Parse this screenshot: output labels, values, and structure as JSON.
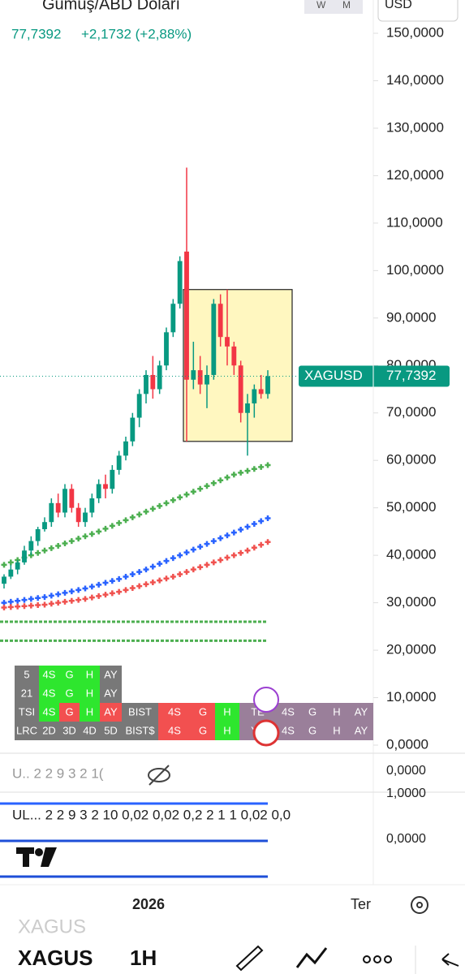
{
  "header": {
    "title": "Gumuş/ABD Doları",
    "price": "77,7392",
    "change": "+2,1732 (+2,88%)",
    "currency": "USD",
    "intervals": [
      "W",
      "M"
    ]
  },
  "chart_data": {
    "type": "candlestick",
    "ylim": [
      0,
      150
    ],
    "yticks": [
      {
        "value": 150,
        "label": "150,0000"
      },
      {
        "value": 140,
        "label": "140,0000"
      },
      {
        "value": 130,
        "label": "130,0000"
      },
      {
        "value": 120,
        "label": "120,0000"
      },
      {
        "value": 110,
        "label": "110,0000"
      },
      {
        "value": 100,
        "label": "100,0000"
      },
      {
        "value": 90,
        "label": "90,0000"
      },
      {
        "value": 80,
        "label": "80,0000"
      },
      {
        "value": 70,
        "label": "70,0000"
      },
      {
        "value": 60,
        "label": "60,0000"
      },
      {
        "value": 50,
        "label": "50,0000"
      },
      {
        "value": 40,
        "label": "40,0000"
      },
      {
        "value": 30,
        "label": "30,0000"
      },
      {
        "value": 20,
        "label": "20,0000"
      },
      {
        "value": 10,
        "label": "10,0000"
      },
      {
        "value": 0,
        "label": "0,0000"
      }
    ],
    "up_color": "#089981",
    "down_color": "#f23645",
    "candles": [
      [
        34,
        36,
        33,
        35.5
      ],
      [
        35.5,
        38,
        35,
        37
      ],
      [
        37,
        39,
        36,
        38.5
      ],
      [
        38.5,
        42,
        38,
        41
      ],
      [
        41,
        44,
        40,
        43
      ],
      [
        43,
        46,
        42,
        45.5
      ],
      [
        45.5,
        48,
        45,
        47
      ],
      [
        47,
        52,
        46,
        51
      ],
      [
        51,
        53,
        48,
        49
      ],
      [
        49,
        55,
        48,
        54
      ],
      [
        54,
        55,
        49,
        50
      ],
      [
        50,
        51,
        46,
        47
      ],
      [
        47,
        50,
        46,
        49
      ],
      [
        49,
        53,
        48,
        52
      ],
      [
        52,
        56,
        51,
        55
      ],
      [
        55,
        57,
        52,
        54
      ],
      [
        54,
        59,
        53,
        58
      ],
      [
        58,
        62,
        57,
        61
      ],
      [
        61,
        65,
        60,
        64
      ],
      [
        64,
        70,
        63,
        69
      ],
      [
        69,
        75,
        67,
        74
      ],
      [
        74,
        79,
        72,
        78
      ],
      [
        78,
        82,
        73,
        75
      ],
      [
        75,
        81,
        74,
        80
      ],
      [
        80,
        88,
        79,
        87
      ],
      [
        87,
        94,
        86,
        93
      ],
      [
        93,
        103,
        92,
        102
      ],
      [
        104,
        121.7,
        64,
        77
      ],
      [
        77,
        85,
        75,
        79
      ],
      [
        79,
        82,
        74,
        76
      ],
      [
        76,
        80,
        71,
        78
      ],
      [
        78,
        94,
        77,
        93
      ],
      [
        93,
        95,
        84,
        86
      ],
      [
        86,
        96,
        80,
        84
      ],
      [
        84,
        85,
        78,
        80
      ],
      [
        80,
        81,
        68,
        70
      ],
      [
        70,
        74,
        61,
        72
      ],
      [
        72,
        76,
        69,
        75
      ],
      [
        75,
        78,
        73,
        74
      ],
      [
        74,
        79,
        73,
        77.7392
      ]
    ],
    "box": {
      "high": 96,
      "low": 64,
      "color": "#fff7c0"
    },
    "series": [
      {
        "color": "#2962ff",
        "values": [
          30,
          30.2,
          30.4,
          30.6,
          30.8,
          31,
          31.2,
          31.5,
          31.8,
          32.1,
          32.4,
          32.7,
          33,
          33.4,
          33.8,
          34.2,
          34.6,
          35,
          35.5,
          36,
          36.5,
          37,
          37.6,
          38.2,
          38.8,
          39.4,
          40,
          40.6,
          41.2,
          41.8,
          42.4,
          43,
          43.6,
          44.2,
          44.8,
          45.4,
          46,
          46.6,
          47.2,
          47.8
        ]
      },
      {
        "color": "#f0524f",
        "values": [
          29,
          29.1,
          29.2,
          29.3,
          29.4,
          29.5,
          29.6,
          29.8,
          30,
          30.2,
          30.4,
          30.6,
          30.8,
          31.1,
          31.4,
          31.7,
          32,
          32.3,
          32.7,
          33.1,
          33.5,
          33.9,
          34.3,
          34.7,
          35.1,
          35.5,
          36,
          36.5,
          37,
          37.5,
          38,
          38.5,
          39,
          39.5,
          40,
          40.5,
          41,
          41.6,
          42.2,
          42.8
        ]
      },
      {
        "color": "#4caf50",
        "values": [
          38,
          38.5,
          39,
          39.5,
          40,
          40.5,
          41,
          41.5,
          42,
          42.5,
          43,
          43.5,
          44,
          44.5,
          45,
          45.6,
          46.2,
          46.8,
          47.4,
          48,
          48.6,
          49.2,
          49.8,
          50.4,
          51,
          51.6,
          52.2,
          52.8,
          53.4,
          54,
          54.6,
          55.2,
          55.8,
          56.4,
          57,
          57.4,
          57.8,
          58.2,
          58.6,
          59
        ]
      }
    ],
    "levels": [
      26,
      22
    ],
    "last": {
      "symbol": "XAGUSD",
      "label": "77,7392",
      "value": 77.7392,
      "color": "#089981"
    },
    "x_labels": [
      "2026",
      "Ter"
    ]
  },
  "table": {
    "rows": [
      [
        {
          "text": "5",
          "color": "#787878"
        },
        {
          "text": "4S",
          "color": "#2ee62e"
        },
        {
          "text": "G",
          "color": "#2ee62e"
        },
        {
          "text": "H",
          "color": "#2ee62e"
        },
        {
          "text": "AY",
          "color": "#787878"
        }
      ],
      [
        {
          "text": "21",
          "color": "#787878"
        },
        {
          "text": "4S",
          "color": "#2ee62e"
        },
        {
          "text": "G",
          "color": "#2ee62e"
        },
        {
          "text": "H",
          "color": "#2ee62e"
        },
        {
          "text": "AY",
          "color": "#787878"
        }
      ],
      [
        {
          "text": "TSI",
          "color": "#787878"
        },
        {
          "text": "4S",
          "color": "#2ee62e"
        },
        {
          "text": "G",
          "color": "#f25050"
        },
        {
          "text": "H",
          "color": "#2ee62e"
        },
        {
          "text": "AY",
          "color": "#f25050"
        },
        {
          "text": "BIST",
          "color": "#787878"
        },
        {
          "text": "4S",
          "color": "#f25050"
        },
        {
          "text": "G",
          "color": "#f25050"
        },
        {
          "text": "H",
          "color": "#2ee62e"
        },
        {
          "text": "TE",
          "color": "#9a7f9a"
        },
        {
          "text": "4S",
          "color": "#9a7f9a"
        },
        {
          "text": "G",
          "color": "#9a7f9a"
        },
        {
          "text": "H",
          "color": "#9a7f9a"
        },
        {
          "text": "AY",
          "color": "#9a7f9a"
        }
      ],
      [
        {
          "text": "LRC",
          "color": "#787878"
        },
        {
          "text": "2D",
          "color": "#787878"
        },
        {
          "text": "3D",
          "color": "#787878"
        },
        {
          "text": "4D",
          "color": "#787878"
        },
        {
          "text": "5D",
          "color": "#787878"
        },
        {
          "text": "BIST$",
          "color": "#787878"
        },
        {
          "text": "4S",
          "color": "#f25050"
        },
        {
          "text": "G",
          "color": "#f25050"
        },
        {
          "text": "H",
          "color": "#2ee62e"
        },
        {
          "text": "YA",
          "color": "#9a7f9a"
        },
        {
          "text": "4S",
          "color": "#9a7f9a"
        },
        {
          "text": "G",
          "color": "#9a7f9a"
        },
        {
          "text": "H",
          "color": "#9a7f9a"
        },
        {
          "text": "AY",
          "color": "#9a7f9a"
        }
      ]
    ]
  },
  "lower_pane": {
    "legend1": "U.. 2 2 9 3 2 1(",
    "legend2": "UL...  2 2 9 3 2 10 0,02 0,02 0,2 2 1 1 0,02 0,0",
    "axis": [
      "0,0000",
      "1,0000",
      "0,0000"
    ]
  },
  "footer": {
    "symbol": "XAGUS",
    "interval": "1H",
    "ghost": "XAGUS"
  }
}
